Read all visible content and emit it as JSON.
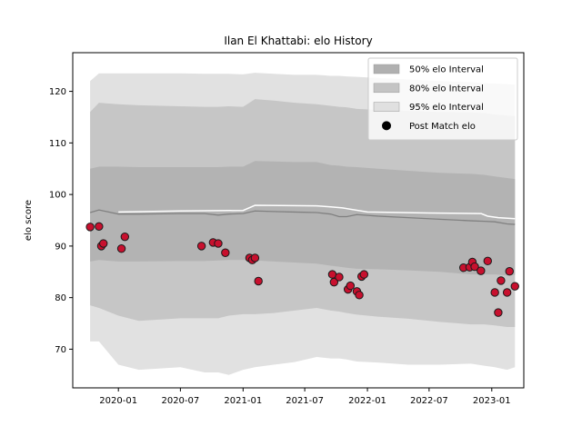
{
  "chart_data": {
    "type": "line",
    "title": "Ilan El Khattabi: elo History",
    "xlabel": "",
    "ylabel": "elo score",
    "xlim": [
      "2019-08-20",
      "2023-04-05"
    ],
    "ylim": [
      62.5,
      127.5
    ],
    "x_ticks": [
      "2020-01",
      "2020-07",
      "2021-01",
      "2021-07",
      "2022-01",
      "2022-07",
      "2023-01"
    ],
    "y_ticks": [
      70,
      80,
      90,
      100,
      110,
      120
    ],
    "grid": false,
    "legend_position": "top-right",
    "legend": [
      {
        "label": "50% elo Interval",
        "kind": "patch",
        "color": "#b0b0b0"
      },
      {
        "label": "80% elo Interval",
        "kind": "patch",
        "color": "#c4c4c4"
      },
      {
        "label": "95% elo Interval",
        "kind": "patch",
        "color": "#e0e0e0"
      },
      {
        "label": "Post Match elo",
        "kind": "marker",
        "color": "#000000"
      }
    ],
    "colors": {
      "band50": "#b3b3b3",
      "band80": "#c6c6c6",
      "band95": "#e1e1e1",
      "mean_line": "#808080",
      "white_line": "#ffffff",
      "point_fill": "#c8102e",
      "point_edge": "#1a1a1a"
    },
    "bands": {
      "dates": [
        "2019-10-10",
        "2019-11-05",
        "2020-01-01",
        "2020-03-01",
        "2020-07-01",
        "2020-09-10",
        "2020-10-20",
        "2020-11-20",
        "2021-01-01",
        "2021-02-05",
        "2021-04-01",
        "2021-06-01",
        "2021-08-05",
        "2021-09-15",
        "2021-10-10",
        "2021-11-01",
        "2021-12-01",
        "2022-02-01",
        "2022-05-01",
        "2022-08-01",
        "2022-11-01",
        "2022-12-10",
        "2023-01-10",
        "2023-02-15",
        "2023-03-10"
      ],
      "upper95": [
        122,
        123.5,
        123.5,
        123.5,
        123.5,
        123.4,
        123.4,
        123.4,
        123.3,
        123.6,
        123.4,
        123.2,
        123.2,
        123.0,
        123.0,
        122.9,
        122.8,
        122.6,
        122.3,
        122.0,
        121.8,
        121.6,
        121.5,
        121.4,
        121.3
      ],
      "upper80": [
        116,
        117.8,
        117.5,
        117.3,
        117.1,
        117.0,
        117.0,
        117.1,
        117.0,
        118.5,
        118.2,
        117.8,
        117.5,
        117.2,
        117.0,
        116.9,
        116.6,
        116.4,
        116.2,
        116.0,
        115.9,
        115.8,
        115.5,
        115.3,
        115.2
      ],
      "upper50": [
        105,
        105.4,
        105.4,
        105.3,
        105.3,
        105.3,
        105.3,
        105.4,
        105.4,
        106.5,
        106.4,
        106.3,
        106.3,
        105.7,
        105.6,
        105.4,
        105.3,
        105.0,
        104.6,
        104.2,
        104.0,
        103.8,
        103.5,
        103.2,
        103.0
      ],
      "mean": [
        96.5,
        97.0,
        96.2,
        96.2,
        96.3,
        96.3,
        96.0,
        96.2,
        96.3,
        96.8,
        96.7,
        96.6,
        96.5,
        96.2,
        95.7,
        95.7,
        96.1,
        95.8,
        95.5,
        95.2,
        94.9,
        94.8,
        94.7,
        94.3,
        94.2
      ],
      "lower50": [
        87.0,
        87.3,
        87.0,
        87.0,
        87.1,
        87.1,
        87.2,
        87.3,
        87.3,
        87.2,
        87.0,
        86.8,
        86.6,
        86.2,
        86.0,
        85.8,
        85.6,
        85.5,
        85.3,
        85.0,
        84.5,
        84.5,
        84.5,
        84.3,
        84.4
      ],
      "lower80": [
        78.5,
        78.0,
        76.5,
        75.5,
        76.0,
        76.0,
        76.0,
        76.5,
        76.8,
        76.8,
        77.0,
        77.5,
        78.0,
        77.5,
        77.3,
        77.0,
        76.7,
        76.3,
        75.9,
        75.3,
        74.8,
        74.8,
        74.6,
        74.3,
        74.3
      ],
      "lower95": [
        71.5,
        71.5,
        67.0,
        66.0,
        66.5,
        65.5,
        65.5,
        65.0,
        66.0,
        66.5,
        67.0,
        67.5,
        68.5,
        68.2,
        68.2,
        68.0,
        67.6,
        67.4,
        67.0,
        67.0,
        67.2,
        66.8,
        66.5,
        66.0,
        66.5
      ]
    },
    "white_line": {
      "dates": [
        "2020-01-01",
        "2020-07-01",
        "2021-01-01",
        "2021-02-05",
        "2021-08-05",
        "2021-09-15",
        "2021-10-20",
        "2022-01-01",
        "2022-07-01",
        "2022-12-01",
        "2022-12-20",
        "2023-01-20",
        "2023-03-10"
      ],
      "values": [
        96.6,
        96.8,
        96.9,
        97.9,
        97.8,
        97.6,
        97.4,
        96.6,
        96.4,
        96.3,
        95.8,
        95.5,
        95.3
      ]
    },
    "series": [
      {
        "name": "Post Match elo",
        "points": [
          [
            "2019-10-10",
            93.7
          ],
          [
            "2019-11-05",
            93.8
          ],
          [
            "2019-11-12",
            90.0
          ],
          [
            "2019-11-18",
            90.5
          ],
          [
            "2020-01-10",
            89.5
          ],
          [
            "2020-01-20",
            91.8
          ],
          [
            "2020-09-01",
            90.0
          ],
          [
            "2020-10-05",
            90.7
          ],
          [
            "2020-10-20",
            90.5
          ],
          [
            "2020-11-10",
            88.7
          ],
          [
            "2021-01-20",
            87.7
          ],
          [
            "2021-01-28",
            87.3
          ],
          [
            "2021-02-05",
            87.7
          ],
          [
            "2021-02-15",
            83.2
          ],
          [
            "2021-09-20",
            84.5
          ],
          [
            "2021-09-25",
            83.0
          ],
          [
            "2021-10-10",
            84.0
          ],
          [
            "2021-11-05",
            81.6
          ],
          [
            "2021-11-12",
            82.3
          ],
          [
            "2021-12-01",
            81.2
          ],
          [
            "2021-12-08",
            80.5
          ],
          [
            "2021-12-15",
            84.1
          ],
          [
            "2021-12-22",
            84.5
          ],
          [
            "2022-10-10",
            85.8
          ],
          [
            "2022-10-28",
            85.9
          ],
          [
            "2022-11-05",
            86.9
          ],
          [
            "2022-11-12",
            86.0
          ],
          [
            "2022-11-30",
            85.2
          ],
          [
            "2022-12-20",
            87.1
          ],
          [
            "2023-01-10",
            81.0
          ],
          [
            "2023-01-20",
            77.1
          ],
          [
            "2023-01-28",
            83.3
          ],
          [
            "2023-02-15",
            81.0
          ],
          [
            "2023-02-22",
            85.1
          ],
          [
            "2023-03-10",
            82.2
          ]
        ]
      }
    ]
  }
}
